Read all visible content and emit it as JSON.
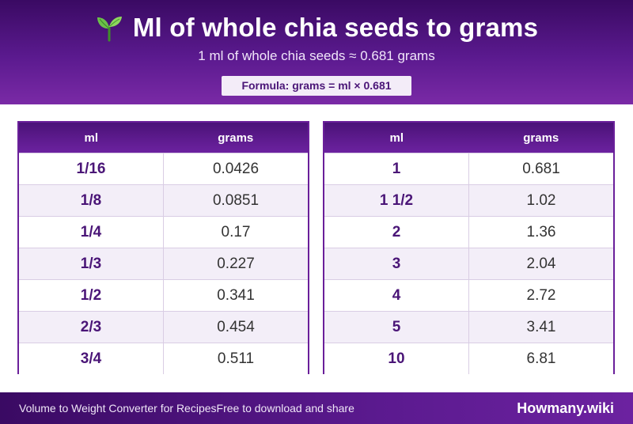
{
  "header": {
    "title": "Ml of whole chia seeds to grams",
    "icon": "seedling-icon",
    "subtitle": "1 ml of whole chia seeds ≈ 0.681 grams",
    "formula": "Formula: grams = ml × 0.681"
  },
  "tables": [
    {
      "col_ml": "ml",
      "col_grams": "grams",
      "rows": [
        {
          "ml": "1/16",
          "grams": "0.0426"
        },
        {
          "ml": "1/8",
          "grams": "0.0851"
        },
        {
          "ml": "1/4",
          "grams": "0.17"
        },
        {
          "ml": "1/3",
          "grams": "0.227"
        },
        {
          "ml": "1/2",
          "grams": "0.341"
        },
        {
          "ml": "2/3",
          "grams": "0.454"
        },
        {
          "ml": "3/4",
          "grams": "0.511"
        }
      ]
    },
    {
      "col_ml": "ml",
      "col_grams": "grams",
      "rows": [
        {
          "ml": "1",
          "grams": "0.681"
        },
        {
          "ml": "1 1/2",
          "grams": "1.02"
        },
        {
          "ml": "2",
          "grams": "1.36"
        },
        {
          "ml": "3",
          "grams": "2.04"
        },
        {
          "ml": "4",
          "grams": "2.72"
        },
        {
          "ml": "5",
          "grams": "3.41"
        },
        {
          "ml": "10",
          "grams": "6.81"
        }
      ]
    }
  ],
  "footer": {
    "left_text_1": "Volume to Weight Converter for Recipes",
    "left_text_2": "Free to download and share",
    "brand": "Howmany.wiki"
  },
  "colors": {
    "primary": "#5b1a8f",
    "accent_text": "#4a1577"
  }
}
